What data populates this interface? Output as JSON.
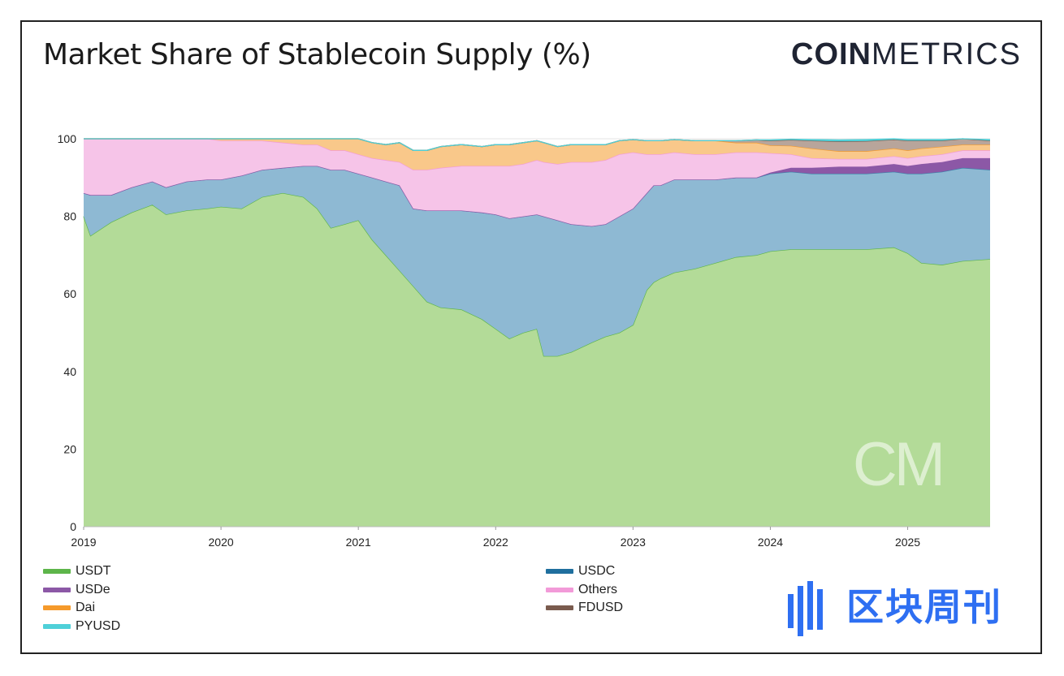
{
  "header": {
    "title": "Market Share of Stablecoin Supply (%)",
    "brand_bold": "COIN",
    "brand_light": "METRICS"
  },
  "watermark": {
    "chart_mark": "CM",
    "publisher": "区块周刊"
  },
  "legend": {
    "left": [
      {
        "label": "USDT",
        "color": "#5db54a"
      },
      {
        "label": "USDe",
        "color": "#8c58a6"
      },
      {
        "label": "Dai",
        "color": "#f59a2b"
      },
      {
        "label": "PYUSD",
        "color": "#4fd0d8"
      }
    ],
    "right": [
      {
        "label": "USDC",
        "color": "#1f6f9e"
      },
      {
        "label": "Others",
        "color": "#f29ad8"
      },
      {
        "label": "FDUSD",
        "color": "#7a5b4e"
      }
    ]
  },
  "chart_data": {
    "type": "area",
    "stacked": true,
    "title": "Market Share of Stablecoin Supply (%)",
    "xlabel": "",
    "ylabel": "",
    "ylim": [
      0,
      100
    ],
    "xlim": [
      2019.0,
      2025.6
    ],
    "x_ticks": [
      "2019",
      "2020",
      "2021",
      "2022",
      "2023",
      "2024",
      "2025"
    ],
    "y_ticks": [
      "0",
      "20",
      "40",
      "60",
      "80",
      "100"
    ],
    "grid": true,
    "legend_position": "bottom",
    "x": [
      2019.0,
      2019.05,
      2019.2,
      2019.35,
      2019.5,
      2019.6,
      2019.75,
      2019.9,
      2020.0,
      2020.15,
      2020.3,
      2020.45,
      2020.6,
      2020.7,
      2020.8,
      2020.9,
      2021.0,
      2021.1,
      2021.2,
      2021.3,
      2021.4,
      2021.5,
      2021.6,
      2021.75,
      2021.9,
      2022.0,
      2022.1,
      2022.2,
      2022.3,
      2022.35,
      2022.45,
      2022.55,
      2022.7,
      2022.8,
      2022.9,
      2023.0,
      2023.1,
      2023.15,
      2023.2,
      2023.3,
      2023.45,
      2023.6,
      2023.75,
      2023.9,
      2024.0,
      2024.15,
      2024.3,
      2024.5,
      2024.7,
      2024.9,
      2025.0,
      2025.1,
      2025.25,
      2025.4,
      2025.6
    ],
    "series": [
      {
        "name": "USDT",
        "color": "#b3db98",
        "line": "#5db54a",
        "values": [
          80,
          75,
          78.5,
          81,
          83,
          80.5,
          81.5,
          82,
          82.5,
          82,
          85,
          86,
          85,
          82,
          77,
          78,
          79,
          74,
          70,
          66,
          62,
          58,
          56.5,
          56,
          53.5,
          51,
          48.5,
          50,
          51,
          44,
          44,
          45,
          47.5,
          49,
          50,
          52,
          61,
          63,
          64,
          65.5,
          66.5,
          68,
          69.5,
          70,
          71,
          71.5,
          71.5,
          71.5,
          71.5,
          72,
          70.5,
          68,
          67.5,
          68.5,
          69
        ]
      },
      {
        "name": "USDC",
        "color": "#8eb9d3",
        "line": "#3c7fa8",
        "values": [
          6,
          10.5,
          7,
          6.5,
          6,
          7,
          7.5,
          7.5,
          7,
          8.5,
          7,
          6.5,
          8,
          11,
          15,
          14,
          12,
          16,
          19,
          22,
          20,
          23.5,
          25,
          25.5,
          27.5,
          29.5,
          31,
          30,
          29.5,
          36,
          35,
          33,
          30,
          29,
          30,
          30,
          25,
          25,
          24,
          24,
          23,
          21.5,
          20.5,
          20,
          20,
          20,
          19.5,
          19.5,
          19.5,
          19.5,
          20.5,
          23,
          24,
          24,
          23
        ]
      },
      {
        "name": "USDe",
        "color": "#8c58a6",
        "line": "#8c58a6",
        "values": [
          0,
          0,
          0,
          0,
          0,
          0,
          0,
          0,
          0,
          0,
          0,
          0,
          0,
          0,
          0,
          0,
          0,
          0,
          0,
          0,
          0,
          0,
          0,
          0,
          0,
          0,
          0,
          0,
          0,
          0,
          0,
          0,
          0,
          0,
          0,
          0,
          0,
          0,
          0,
          0,
          0,
          0,
          0,
          0,
          0.3,
          1,
          1.5,
          1.8,
          1.8,
          2,
          2,
          2.5,
          2.5,
          2.5,
          3
        ]
      },
      {
        "name": "Others",
        "color": "#f6c4e8",
        "line": "#f29ad8",
        "values": [
          14,
          14.5,
          14.5,
          12.5,
          11,
          12.5,
          11,
          10.5,
          10,
          9,
          7.5,
          6.5,
          5.5,
          5.5,
          5,
          5,
          5,
          5,
          5.5,
          6,
          10,
          10.5,
          11,
          11.5,
          12,
          12.5,
          13.5,
          13.5,
          14,
          14,
          14.5,
          16,
          16.5,
          16.5,
          16,
          14.5,
          10,
          8,
          8,
          7,
          6.5,
          6.5,
          6.5,
          6.5,
          5,
          3.5,
          2.5,
          2,
          2,
          2,
          2,
          2,
          2,
          2,
          2
        ]
      },
      {
        "name": "Dai",
        "color": "#f9c88a",
        "line": "#f59a2b",
        "values": [
          0,
          0,
          0,
          0,
          0,
          0,
          0,
          0,
          0.5,
          0.5,
          0.5,
          1,
          1.5,
          1.5,
          3,
          3,
          4,
          4,
          4,
          5,
          5,
          5,
          5.5,
          5.5,
          5,
          5.5,
          5.5,
          5.5,
          5,
          5,
          4.5,
          4.5,
          4.5,
          4,
          3.5,
          3.3,
          3.5,
          3.5,
          3.5,
          3.3,
          3.5,
          3.5,
          2.5,
          2.5,
          2,
          2.2,
          2.5,
          2,
          2,
          2,
          2,
          2,
          2,
          1.5,
          1.5
        ]
      },
      {
        "name": "FDUSD",
        "color": "#b8a59b",
        "line": "#7a5b4e",
        "values": [
          0,
          0,
          0,
          0,
          0,
          0,
          0,
          0,
          0,
          0,
          0,
          0,
          0,
          0,
          0,
          0,
          0,
          0,
          0,
          0,
          0,
          0,
          0,
          0,
          0,
          0,
          0,
          0,
          0,
          0,
          0,
          0,
          0,
          0,
          0,
          0,
          0,
          0,
          0,
          0,
          0,
          0,
          0.5,
          0.7,
          1.2,
          1.5,
          2,
          2.5,
          2.6,
          2.3,
          2.5,
          2,
          1.5,
          1.5,
          1
        ]
      },
      {
        "name": "PYUSD",
        "color": "#4fd0d8",
        "line": "#4fd0d8",
        "values": [
          0,
          0,
          0,
          0,
          0,
          0,
          0,
          0,
          0,
          0,
          0,
          0,
          0,
          0,
          0,
          0,
          0,
          0,
          0,
          0,
          0,
          0,
          0,
          0,
          0,
          0,
          0,
          0,
          0,
          0,
          0,
          0,
          0,
          0,
          0,
          0,
          0,
          0,
          0,
          0,
          0,
          0,
          0,
          0,
          0.2,
          0.2,
          0.3,
          0.4,
          0.4,
          0.4,
          0.3,
          0.3,
          0.3,
          0.3,
          0.3
        ]
      }
    ]
  }
}
